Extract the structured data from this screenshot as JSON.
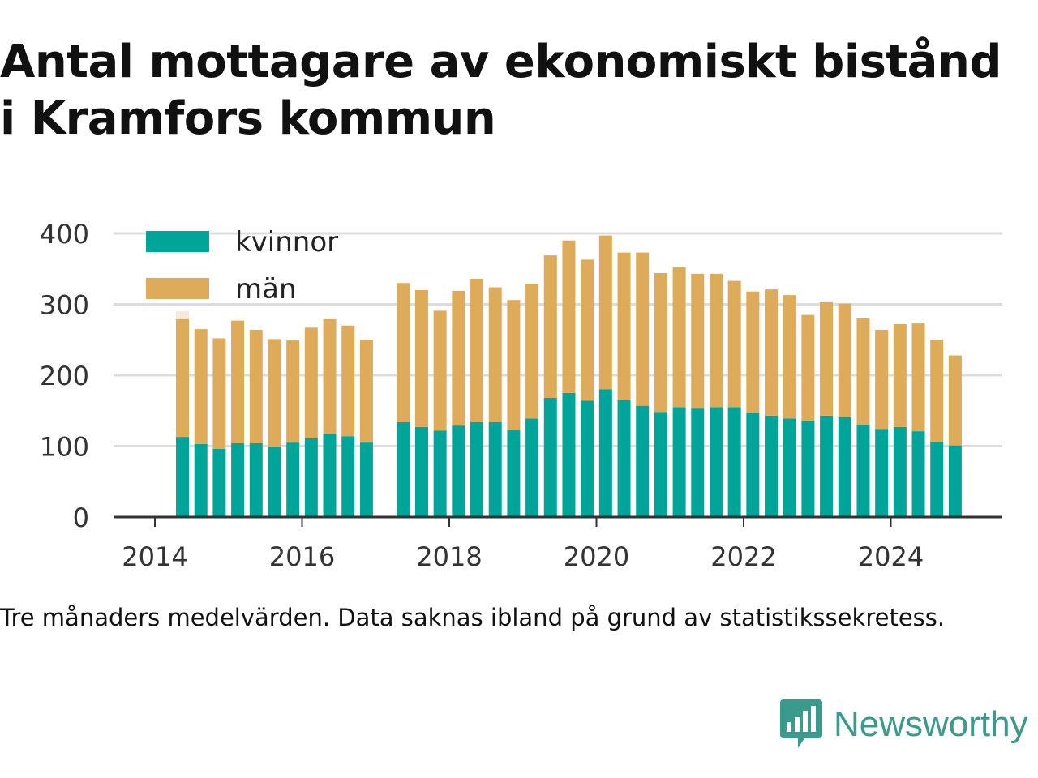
{
  "title_lines": [
    "Antal mottagare av ekonomiskt bistånd",
    "i Kramfors kommun"
  ],
  "note": "Tre månaders medelvärden. Data saknas ibland på grund av statistikssekretess.",
  "brand": {
    "name": "Newsworthy",
    "icon": "newsworthy-logo-icon",
    "color": "#3a9a8c"
  },
  "colors": {
    "kvinnor": "#00a499",
    "man": "#ddab59",
    "grid": "#dcdcdc",
    "axis": "#333333"
  },
  "chart_data": {
    "type": "bar",
    "stacked": true,
    "title": "Antal mottagare av ekonomiskt bistånd i Kramfors kommun",
    "xlabel": "",
    "ylabel": "",
    "ylim": [
      0,
      400
    ],
    "yticks": [
      0,
      100,
      200,
      300,
      400
    ],
    "xlim": [
      2013.6,
      2025.5
    ],
    "xticks": [
      2014,
      2016,
      2018,
      2020,
      2022,
      2024
    ],
    "grid": true,
    "legend": "top-left",
    "x": [
      2014.375,
      2014.625,
      2014.875,
      2015.125,
      2015.375,
      2015.625,
      2015.875,
      2016.125,
      2016.375,
      2016.625,
      2016.875,
      2017.375,
      2017.625,
      2017.875,
      2018.125,
      2018.375,
      2018.625,
      2018.875,
      2019.125,
      2019.375,
      2019.625,
      2019.875,
      2020.125,
      2020.375,
      2020.625,
      2020.875,
      2021.125,
      2021.375,
      2021.625,
      2021.875,
      2022.125,
      2022.375,
      2022.625,
      2022.875,
      2023.125,
      2023.375,
      2023.625,
      2023.875,
      2024.125,
      2024.375,
      2024.625,
      2024.875
    ],
    "series": [
      {
        "name": "kvinnor",
        "values": [
          113,
          103,
          96,
          104,
          104,
          99,
          105,
          111,
          117,
          114,
          105,
          134,
          127,
          122,
          129,
          134,
          134,
          123,
          139,
          168,
          175,
          164,
          180,
          165,
          157,
          148,
          155,
          153,
          155,
          155,
          147,
          143,
          139,
          136,
          143,
          141,
          130,
          124,
          127,
          121,
          106,
          101
        ]
      },
      {
        "name": "män",
        "values": [
          166,
          162,
          156,
          173,
          160,
          152,
          144,
          156,
          162,
          156,
          145,
          196,
          193,
          169,
          190,
          202,
          190,
          183,
          190,
          201,
          215,
          199,
          217,
          208,
          216,
          196,
          197,
          190,
          188,
          178,
          171,
          178,
          174,
          149,
          160,
          160,
          150,
          140,
          145,
          152,
          144,
          127
        ]
      }
    ],
    "faint_marker": {
      "x": 2014.375,
      "value": 290
    }
  }
}
